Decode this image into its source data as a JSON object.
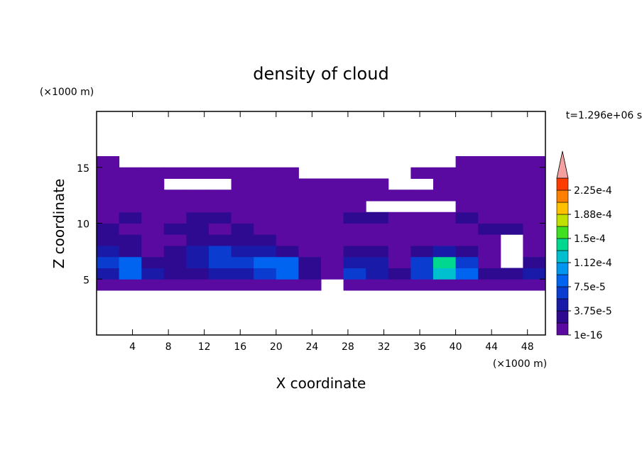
{
  "chart_data": {
    "type": "contour",
    "title": "density of cloud",
    "subtitle": "t=1.296e+06 s",
    "x_label": "X coordinate",
    "y_label": "Z coordinate",
    "x_unit": "(×1000 m)",
    "y_unit": "(×1000 m)",
    "xlim": [
      0,
      50
    ],
    "ylim": [
      0,
      20
    ],
    "xticks": [
      4,
      8,
      12,
      16,
      20,
      24,
      28,
      32,
      36,
      40,
      44,
      48
    ],
    "yticks": [
      5,
      10,
      15
    ],
    "x": [
      1.25,
      3.75,
      6.25,
      8.75,
      11.25,
      13.75,
      16.25,
      18.75,
      21.25,
      23.75,
      26.25,
      28.75,
      31.25,
      33.75,
      36.25,
      38.75,
      41.25,
      43.75,
      46.25,
      48.75
    ],
    "z": [
      4.5,
      5.5,
      6.5,
      7.5,
      8.5,
      9.5,
      10.5,
      11.5,
      12.5,
      13.5,
      14.5,
      15.5
    ],
    "values": [
      [
        5e-06,
        5e-06,
        5e-06,
        5e-06,
        5e-06,
        5e-06,
        5e-06,
        5e-06,
        5e-06,
        5e-06,
        null,
        5e-06,
        5e-06,
        5e-06,
        5e-06,
        5e-06,
        5e-06,
        5e-06,
        5e-06,
        5e-06
      ],
      [
        4.5e-05,
        8.5e-05,
        4.5e-05,
        2.5e-05,
        2.5e-05,
        4.5e-05,
        4.5e-05,
        6.5e-05,
        8.5e-05,
        2.5e-05,
        5e-06,
        6.5e-05,
        4.5e-05,
        2.5e-05,
        6.5e-05,
        0.00012,
        8.5e-05,
        2.5e-05,
        2.5e-05,
        4.5e-05
      ],
      [
        6.5e-05,
        8.5e-05,
        2.5e-05,
        2.5e-05,
        4.5e-05,
        6.5e-05,
        6.5e-05,
        8.5e-05,
        8.5e-05,
        2.5e-05,
        5e-06,
        4.5e-05,
        4.5e-05,
        5e-06,
        6.5e-05,
        0.00014,
        6.5e-05,
        5e-06,
        null,
        2.5e-05
      ],
      [
        4.5e-05,
        2.5e-05,
        5e-06,
        2.5e-05,
        4.5e-05,
        6.5e-05,
        4.5e-05,
        4.5e-05,
        2.5e-05,
        5e-06,
        5e-06,
        2.5e-05,
        2.5e-05,
        5e-06,
        2.5e-05,
        4.5e-05,
        2.5e-05,
        5e-06,
        null,
        5e-06
      ],
      [
        2.5e-05,
        2.5e-05,
        5e-06,
        5e-06,
        2.5e-05,
        2.5e-05,
        2.5e-05,
        2.5e-05,
        5e-06,
        5e-06,
        5e-06,
        5e-06,
        5e-06,
        5e-06,
        5e-06,
        5e-06,
        5e-06,
        5e-06,
        null,
        5e-06
      ],
      [
        2.5e-05,
        5e-06,
        5e-06,
        2.5e-05,
        2.5e-05,
        5e-06,
        2.5e-05,
        5e-06,
        5e-06,
        5e-06,
        5e-06,
        5e-06,
        5e-06,
        5e-06,
        5e-06,
        5e-06,
        5e-06,
        2.5e-05,
        2.5e-05,
        5e-06
      ],
      [
        5e-06,
        2.5e-05,
        5e-06,
        5e-06,
        2.5e-05,
        2.5e-05,
        5e-06,
        5e-06,
        5e-06,
        5e-06,
        5e-06,
        2.5e-05,
        2.5e-05,
        5e-06,
        5e-06,
        5e-06,
        2.5e-05,
        5e-06,
        5e-06,
        5e-06
      ],
      [
        5e-06,
        5e-06,
        5e-06,
        5e-06,
        5e-06,
        5e-06,
        5e-06,
        5e-06,
        5e-06,
        5e-06,
        5e-06,
        5e-06,
        null,
        null,
        null,
        null,
        5e-06,
        5e-06,
        5e-06,
        5e-06
      ],
      [
        5e-06,
        5e-06,
        5e-06,
        5e-06,
        5e-06,
        5e-06,
        5e-06,
        5e-06,
        5e-06,
        5e-06,
        5e-06,
        5e-06,
        5e-06,
        5e-06,
        5e-06,
        5e-06,
        5e-06,
        5e-06,
        5e-06,
        5e-06
      ],
      [
        5e-06,
        5e-06,
        5e-06,
        null,
        null,
        null,
        5e-06,
        5e-06,
        5e-06,
        5e-06,
        5e-06,
        5e-06,
        5e-06,
        null,
        null,
        5e-06,
        5e-06,
        5e-06,
        5e-06,
        5e-06
      ],
      [
        5e-06,
        5e-06,
        5e-06,
        5e-06,
        5e-06,
        5e-06,
        5e-06,
        5e-06,
        5e-06,
        null,
        null,
        null,
        null,
        null,
        5e-06,
        5e-06,
        5e-06,
        5e-06,
        5e-06,
        5e-06
      ],
      [
        5e-06,
        null,
        null,
        null,
        null,
        null,
        null,
        null,
        null,
        null,
        null,
        null,
        null,
        null,
        null,
        null,
        5e-06,
        5e-06,
        5e-06,
        5e-06
      ]
    ],
    "levels": [
      1e-16,
      1.875e-05,
      3.75e-05,
      5.625e-05,
      7.5e-05,
      9.375e-05,
      0.0001125,
      0.00013125,
      0.00015,
      0.00016875,
      0.0001875,
      0.00020625,
      0.000225,
      0.00024375
    ],
    "colors": [
      "#5a0aa0",
      "#2e0a90",
      "#1a1aa8",
      "#0a3cd0",
      "#0064f0",
      "#0096f0",
      "#00c0d0",
      "#00d890",
      "#40e020",
      "#c0e000",
      "#ffc000",
      "#ff8000",
      "#ff3c00"
    ],
    "extend_color": "#f4a0a0",
    "colorbar_ticks": [
      1e-16,
      {
        "value": 3.75e-05,
        "label": "3.75e-5"
      },
      {
        "value": 7.5e-05,
        "label": "7.5e-5"
      },
      {
        "value": 0.0001125,
        "label": "1.12e-4"
      },
      {
        "value": 0.00015,
        "label": "1.5e-4"
      },
      {
        "value": 0.0001875,
        "label": "1.88e-4"
      },
      {
        "value": 0.000225,
        "label": "2.25e-4"
      }
    ]
  }
}
